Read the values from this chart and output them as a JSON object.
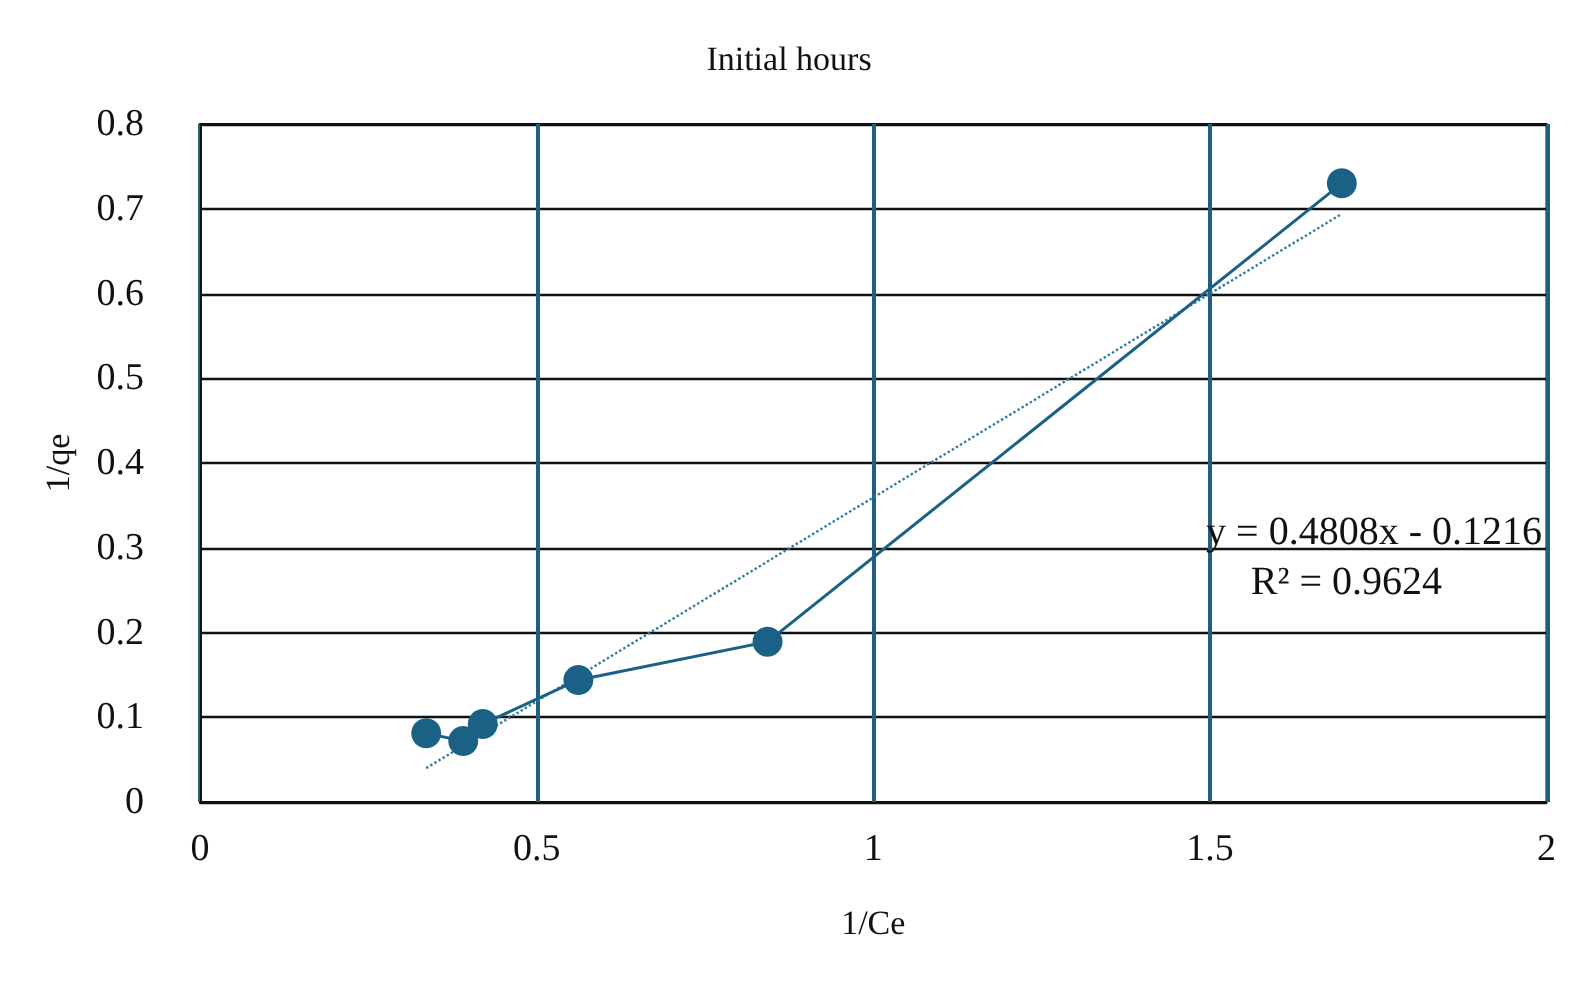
{
  "chart_data": {
    "type": "line",
    "title": "Initial hours",
    "xlabel": "1/Ce",
    "ylabel": "1/qe",
    "xlim": [
      0,
      2
    ],
    "xticks": [
      0,
      0.5,
      1,
      1.5,
      2
    ],
    "ylim": [
      0,
      0.8
    ],
    "yticks": [
      0,
      0.1,
      0.2,
      0.3,
      0.4,
      0.5,
      0.6,
      0.7,
      0.8
    ],
    "grid": true,
    "series": [
      {
        "color": "#1b6185",
        "x": [
          0.336,
          0.391,
          0.42,
          0.562,
          0.843,
          1.696
        ],
        "values": [
          0.081,
          0.072,
          0.092,
          0.144,
          0.189,
          0.73
        ],
        "marker": "circle",
        "line_style": "solid"
      },
      {
        "type": "line",
        "color": "#2e7aa0",
        "x": [
          0.336,
          1.696
        ],
        "values": [
          0.04,
          0.694
        ],
        "marker": "none",
        "line_style": "dotted"
      }
    ],
    "annotations": [
      "y = 0.4808x - 0.1216",
      "R² = 0.9624"
    ]
  }
}
